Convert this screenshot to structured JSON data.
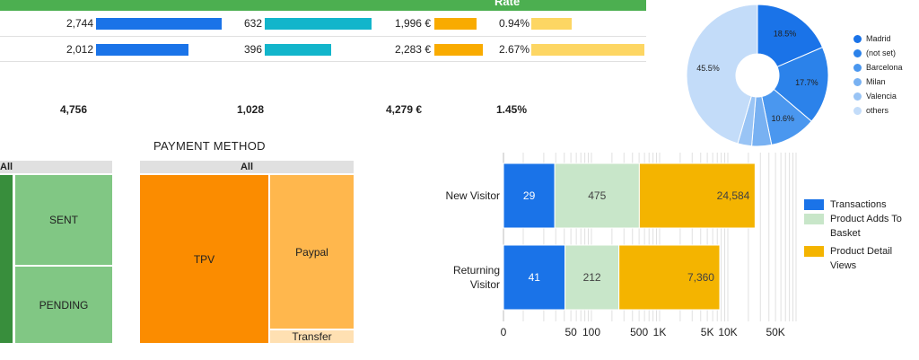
{
  "table": {
    "rate_header": "Rate",
    "rows": [
      {
        "col1": "2,744",
        "col2": "632",
        "col3": "1,996 €",
        "col4": "0.94%",
        "col1_val": 2744,
        "col2_val": 632,
        "col3_val": 1996,
        "col4_val": 0.94
      },
      {
        "col1": "2,012",
        "col2": "396",
        "col3": "2,283 €",
        "col4": "2.67%",
        "col1_val": 2012,
        "col2_val": 396,
        "col3_val": 2283,
        "col4_val": 2.67
      }
    ],
    "totals": {
      "col1": "4,756",
      "col2": "1,028",
      "col3": "4,279 €",
      "col4": "1.45%"
    },
    "bar_colors": {
      "col1": "#1a73e8",
      "col2": "#12b5cb",
      "col3": "#f9ab00",
      "col4": "#fdd663"
    }
  },
  "treemap_left": {
    "header": "All",
    "cells": [
      "SENT",
      "PENDING"
    ]
  },
  "treemap_payment": {
    "title": "PAYMENT METHOD",
    "header": "All",
    "cells": [
      "TPV",
      "Paypal",
      "Transfer"
    ]
  },
  "chart_data": [
    {
      "type": "pie",
      "donut": true,
      "legend": [
        "Madrid",
        "(not set)",
        "Barcelona",
        "Milan",
        "Valencia",
        "others"
      ],
      "values": [
        18.5,
        17.7,
        10.6,
        4.5,
        3.2,
        45.5
      ],
      "labels": [
        "18.5%",
        "17.7%",
        "10.6%",
        "",
        "",
        "45.5%"
      ],
      "colors": [
        "#1a73e8",
        "#2b82ea",
        "#4a97ef",
        "#78b1f2",
        "#99c4f5",
        "#c3dcf9"
      ],
      "legend_position": "right"
    },
    {
      "type": "bar",
      "orientation": "horizontal",
      "stacked": true,
      "scale": "log",
      "categories": [
        "New Visitor",
        "Returning Visitor"
      ],
      "series": [
        {
          "name": "Transactions",
          "values": [
            29,
            41
          ],
          "color": "#1a73e8"
        },
        {
          "name": "Product Adds To Basket",
          "values": [
            475,
            212
          ],
          "color": "#c8e6c9"
        },
        {
          "name": "Product Detail Views",
          "values": [
            24584,
            7360
          ],
          "color": "#f4b400"
        }
      ],
      "value_labels": [
        [
          "29",
          "475",
          "24,584"
        ],
        [
          "41",
          "212",
          "7,360"
        ]
      ],
      "x_ticks": [
        "0",
        "50",
        "100",
        "500",
        "1K",
        "5K",
        "10K",
        "50K"
      ],
      "legend_position": "right"
    }
  ]
}
